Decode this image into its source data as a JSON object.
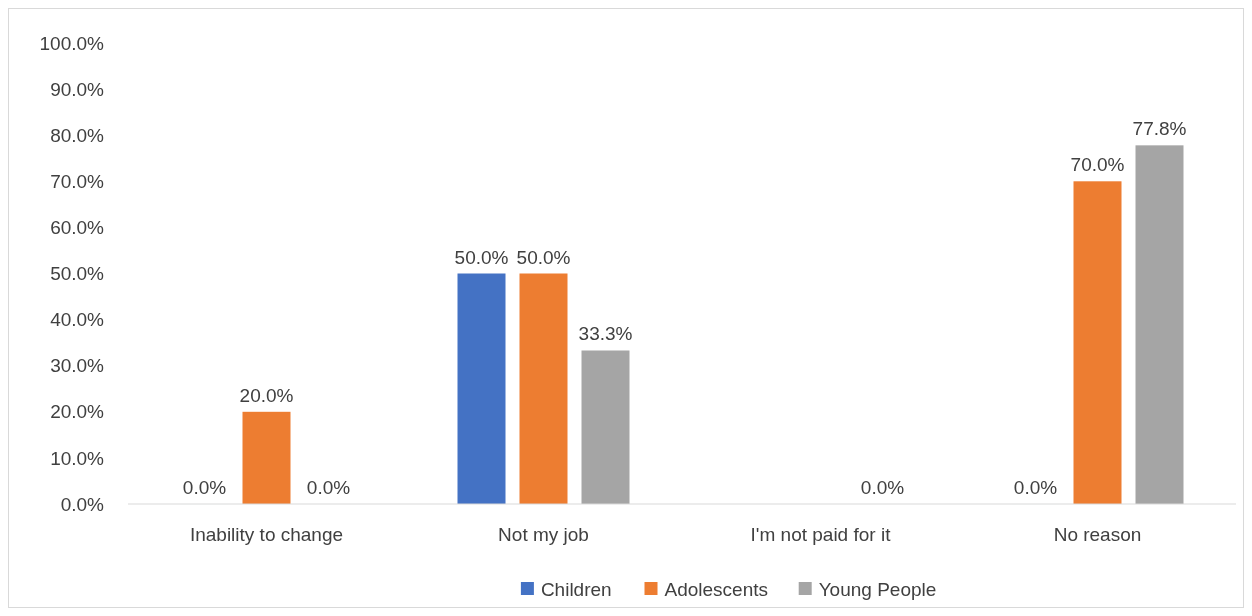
{
  "chart_data": {
    "type": "bar",
    "categories": [
      "Inability to change",
      "Not my job",
      "I'm not paid for it",
      "No reason"
    ],
    "series": [
      {
        "name": "Children",
        "color": "#4472c4",
        "values": [
          0,
          50,
          null,
          0
        ],
        "value_labels": [
          "0.0%",
          "50.0%",
          null,
          "0.0%"
        ]
      },
      {
        "name": "Adolescents",
        "color": "#ed7d31",
        "values": [
          20,
          50,
          null,
          70
        ],
        "value_labels": [
          "20.0%",
          "50.0%",
          null,
          "70.0%"
        ]
      },
      {
        "name": "Young People",
        "color": "#a5a5a5",
        "values": [
          0,
          33.3,
          0,
          77.8
        ],
        "value_labels": [
          "0.0%",
          "33.3%",
          "0.0%",
          "77.8%"
        ]
      }
    ],
    "ylim": [
      0,
      100
    ],
    "yticks": [
      {
        "value": 0,
        "label": "0.0%"
      },
      {
        "value": 10,
        "label": "10.0%"
      },
      {
        "value": 20,
        "label": "20.0%"
      },
      {
        "value": 30,
        "label": "30.0%"
      },
      {
        "value": 40,
        "label": "40.0%"
      },
      {
        "value": 50,
        "label": "50.0%"
      },
      {
        "value": 60,
        "label": "60.0%"
      },
      {
        "value": 70,
        "label": "70.0%"
      },
      {
        "value": 80,
        "label": "80.0%"
      },
      {
        "value": 90,
        "label": "90.0%"
      },
      {
        "value": 100,
        "label": "100.0%"
      }
    ],
    "legend": "bottom"
  }
}
